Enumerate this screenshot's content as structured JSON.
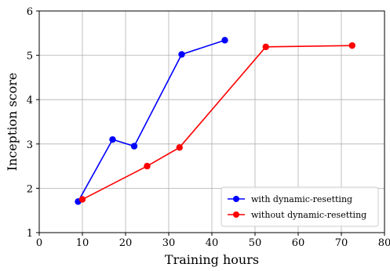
{
  "chart_data": {
    "type": "line",
    "xlabel": "Training hours",
    "ylabel": "Inception score",
    "xlim": [
      0,
      80
    ],
    "ylim": [
      1,
      6
    ],
    "xticks": [
      0,
      10,
      20,
      30,
      40,
      50,
      60,
      70,
      80
    ],
    "yticks": [
      1,
      2,
      3,
      4,
      5,
      6
    ],
    "grid": true,
    "legend_position": "bottom-right",
    "series": [
      {
        "name": "with dynamic-resetting",
        "color": "#0000ff",
        "x": [
          9,
          17,
          22,
          33,
          43
        ],
        "y": [
          1.7,
          3.1,
          2.95,
          5.02,
          5.34
        ]
      },
      {
        "name": "without dynamic-resetting",
        "color": "#ff0000",
        "x": [
          10,
          25,
          32.5,
          52.5,
          72.5
        ],
        "y": [
          1.75,
          2.5,
          2.92,
          5.19,
          5.22
        ]
      }
    ]
  }
}
